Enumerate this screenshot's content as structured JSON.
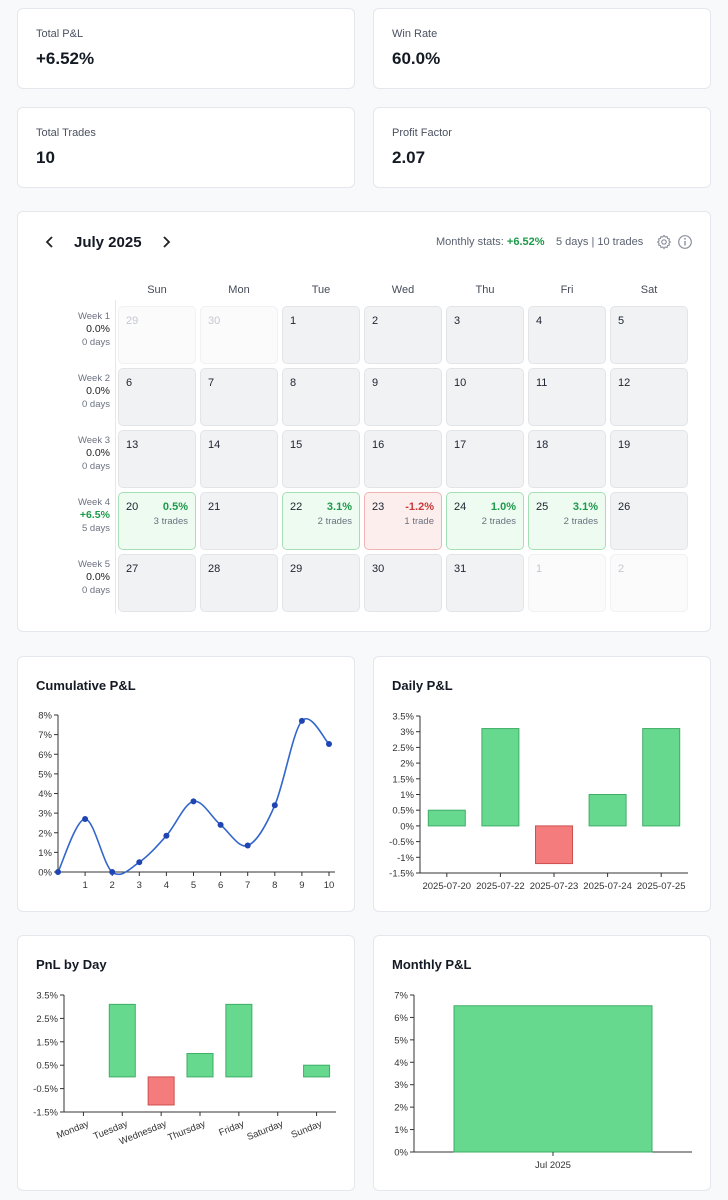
{
  "stats": [
    {
      "label": "Total P&L",
      "value": "+6.52%"
    },
    {
      "label": "Win Rate",
      "value": "60.0%"
    },
    {
      "label": "Total Trades",
      "value": "10"
    },
    {
      "label": "Profit Factor",
      "value": "2.07"
    }
  ],
  "calendar": {
    "prev_icon": "chevron-left-icon",
    "next_icon": "chevron-right-icon",
    "month": "July 2025",
    "monthly_stats_label": "Monthly stats:",
    "monthly_stats_value": "+6.52%",
    "days_summary": "5 days | 10 trades",
    "settings_icon": "gear-icon",
    "info_icon": "info-icon",
    "weekdays": [
      "Sun",
      "Mon",
      "Tue",
      "Wed",
      "Thu",
      "Fri",
      "Sat"
    ],
    "weeks": [
      {
        "label": "Week 1",
        "value": "0.0%",
        "days": "0 days",
        "positive": false,
        "cells": [
          {
            "d": "29",
            "type": "out"
          },
          {
            "d": "30",
            "type": "out"
          },
          {
            "d": "1",
            "type": "empty"
          },
          {
            "d": "2",
            "type": "empty"
          },
          {
            "d": "3",
            "type": "empty"
          },
          {
            "d": "4",
            "type": "empty"
          },
          {
            "d": "5",
            "type": "empty"
          }
        ]
      },
      {
        "label": "Week 2",
        "value": "0.0%",
        "days": "0 days",
        "positive": false,
        "cells": [
          {
            "d": "6",
            "type": "empty"
          },
          {
            "d": "7",
            "type": "empty"
          },
          {
            "d": "8",
            "type": "empty"
          },
          {
            "d": "9",
            "type": "empty"
          },
          {
            "d": "10",
            "type": "empty"
          },
          {
            "d": "11",
            "type": "empty"
          },
          {
            "d": "12",
            "type": "empty"
          }
        ]
      },
      {
        "label": "Week 3",
        "value": "0.0%",
        "days": "0 days",
        "positive": false,
        "cells": [
          {
            "d": "13",
            "type": "empty"
          },
          {
            "d": "14",
            "type": "empty"
          },
          {
            "d": "15",
            "type": "empty"
          },
          {
            "d": "16",
            "type": "empty"
          },
          {
            "d": "17",
            "type": "empty"
          },
          {
            "d": "18",
            "type": "empty"
          },
          {
            "d": "19",
            "type": "empty"
          }
        ]
      },
      {
        "label": "Week 4",
        "value": "+6.5%",
        "days": "5 days",
        "positive": true,
        "cells": [
          {
            "d": "20",
            "type": "win",
            "pnl": "0.5%",
            "trades": "3 trades"
          },
          {
            "d": "21",
            "type": "empty"
          },
          {
            "d": "22",
            "type": "win",
            "pnl": "3.1%",
            "trades": "2 trades"
          },
          {
            "d": "23",
            "type": "loss",
            "pnl": "-1.2%",
            "trades": "1 trade"
          },
          {
            "d": "24",
            "type": "win",
            "pnl": "1.0%",
            "trades": "2 trades"
          },
          {
            "d": "25",
            "type": "win",
            "pnl": "3.1%",
            "trades": "2 trades"
          },
          {
            "d": "26",
            "type": "empty"
          }
        ]
      },
      {
        "label": "Week 5",
        "value": "0.0%",
        "days": "0 days",
        "positive": false,
        "cells": [
          {
            "d": "27",
            "type": "empty"
          },
          {
            "d": "28",
            "type": "empty"
          },
          {
            "d": "29",
            "type": "empty"
          },
          {
            "d": "30",
            "type": "empty"
          },
          {
            "d": "31",
            "type": "empty"
          },
          {
            "d": "1",
            "type": "out"
          },
          {
            "d": "2",
            "type": "out"
          }
        ]
      }
    ]
  },
  "colors": {
    "positive": "#1c9a4a",
    "negative": "#c83a3a",
    "bar_positive": "#66d98f",
    "bar_positive_stroke": "#3fae66",
    "bar_negative": "#f47c7c",
    "bar_negative_stroke": "#cf4f4f",
    "line": "#3366cc",
    "point": "#1f45b3"
  },
  "chart_data": [
    {
      "id": "cumulative",
      "type": "line",
      "title": "Cumulative P&L",
      "x": [
        0,
        1,
        2,
        3,
        4,
        5,
        6,
        7,
        8,
        9,
        10
      ],
      "series": [
        {
          "name": "Cumulative P&L",
          "values": [
            0,
            2.7,
            0,
            0.5,
            1.85,
            3.6,
            2.4,
            1.35,
            3.4,
            7.7,
            6.52
          ]
        }
      ],
      "xticks": [
        "1",
        "2",
        "3",
        "4",
        "5",
        "6",
        "7",
        "8",
        "9",
        "10"
      ],
      "xtick_values": [
        1,
        2,
        3,
        4,
        5,
        6,
        7,
        8,
        9,
        10
      ],
      "yticks": [
        "0%",
        "1%",
        "2%",
        "3%",
        "4%",
        "5%",
        "6%",
        "7%",
        "8%"
      ],
      "ytick_values": [
        0,
        1,
        2,
        3,
        4,
        5,
        6,
        7,
        8
      ],
      "xlim": [
        0,
        10
      ],
      "ylim": [
        0,
        8
      ],
      "grid": false
    },
    {
      "id": "daily",
      "type": "bar",
      "title": "Daily P&L",
      "categories": [
        "2025-07-20",
        "2025-07-22",
        "2025-07-23",
        "2025-07-24",
        "2025-07-25"
      ],
      "values": [
        0.5,
        3.1,
        -1.2,
        1.0,
        3.1
      ],
      "yticks": [
        "3.5%",
        "3%",
        "2.5%",
        "2%",
        "1.5%",
        "1%",
        "0.5%",
        "0%",
        "-0.5%",
        "-1%",
        "-1.5%"
      ],
      "ytick_values": [
        3.5,
        3,
        2.5,
        2,
        1.5,
        1,
        0.5,
        0,
        -0.5,
        -1,
        -1.5
      ],
      "ylim": [
        -1.5,
        3.5
      ],
      "grid": false
    },
    {
      "id": "byday",
      "type": "bar",
      "title": "PnL by Day",
      "categories": [
        "Monday",
        "Tuesday",
        "Wednesday",
        "Thursday",
        "Friday",
        "Saturday",
        "Sunday"
      ],
      "values": [
        0,
        3.1,
        -1.2,
        1.0,
        3.1,
        0,
        0.5
      ],
      "yticks": [
        "3.5%",
        "2.5%",
        "1.5%",
        "0.5%",
        "-0.5%",
        "-1.5%"
      ],
      "ytick_values": [
        3.5,
        2.5,
        1.5,
        0.5,
        -0.5,
        -1.5
      ],
      "ylim": [
        -1.5,
        3.5
      ],
      "grid": false
    },
    {
      "id": "monthly",
      "type": "bar",
      "title": "Monthly P&L",
      "categories": [
        "Jul 2025"
      ],
      "values": [
        6.52
      ],
      "yticks": [
        "7%",
        "6%",
        "5%",
        "4%",
        "3%",
        "2%",
        "1%",
        "0%"
      ],
      "ytick_values": [
        7,
        6,
        5,
        4,
        3,
        2,
        1,
        0
      ],
      "ylim": [
        0,
        7
      ],
      "grid": false
    }
  ]
}
